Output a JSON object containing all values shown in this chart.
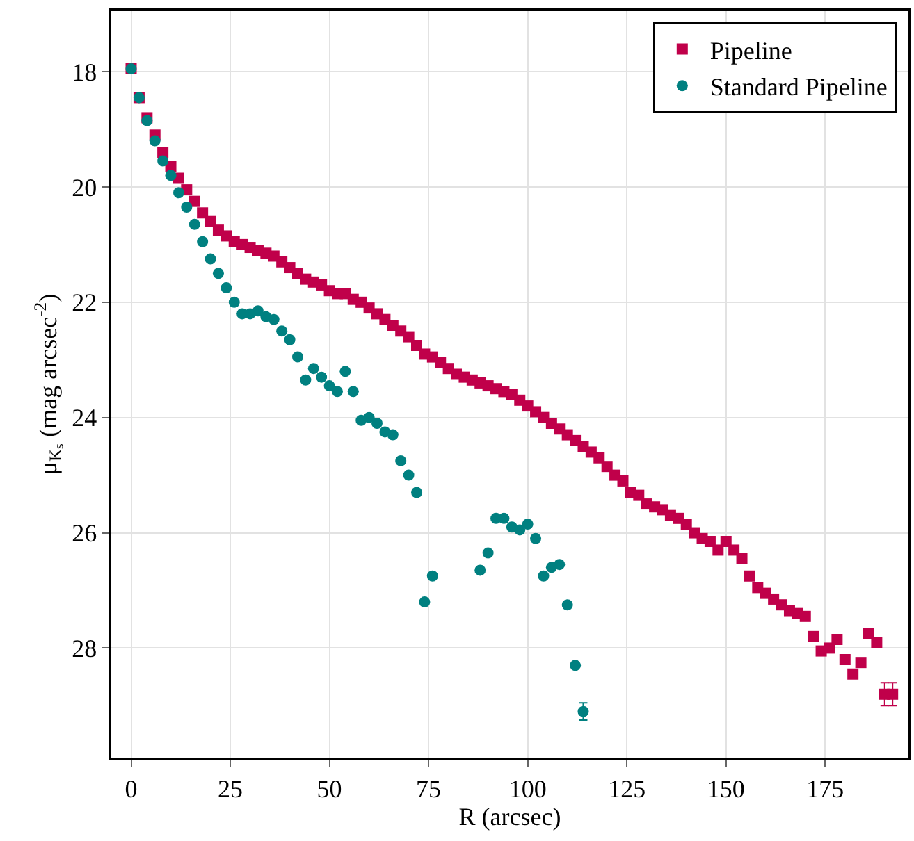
{
  "chart_data": {
    "type": "scatter",
    "xlabel": "R (arcsec)",
    "ylabel": "μ$_{Kₛ}$ (mag arcsec$^{-2}$)",
    "xlim": [
      -5,
      196
    ],
    "xticks": [
      0,
      25,
      50,
      75,
      100,
      125,
      150,
      175
    ],
    "ylim": [
      29.9,
      16.95
    ],
    "yticks": [
      18,
      20,
      22,
      24,
      26,
      28
    ],
    "grid": true,
    "legend": "top right",
    "series": [
      {
        "name": "Pipeline",
        "color": "#c0004a",
        "marker": "square",
        "x": [
          0,
          2,
          4,
          6,
          8,
          10,
          12,
          14,
          16,
          18,
          20,
          22,
          24,
          26,
          28,
          30,
          32,
          34,
          36,
          38,
          40,
          42,
          44,
          46,
          48,
          50,
          52,
          54,
          56,
          58,
          60,
          62,
          64,
          66,
          68,
          70,
          72,
          74,
          76,
          78,
          80,
          82,
          84,
          86,
          88,
          90,
          92,
          94,
          96,
          98,
          100,
          102,
          104,
          106,
          108,
          110,
          112,
          114,
          116,
          118,
          120,
          122,
          124,
          126,
          128,
          130,
          132,
          134,
          136,
          138,
          140,
          142,
          144,
          146,
          148,
          150,
          152,
          154,
          156,
          158,
          160,
          162,
          164,
          166,
          168,
          170,
          172,
          174,
          176,
          178,
          180,
          182,
          184,
          186,
          188,
          190,
          192
        ],
        "values": [
          17.95,
          18.45,
          18.8,
          19.1,
          19.4,
          19.65,
          19.85,
          20.05,
          20.25,
          20.45,
          20.6,
          20.75,
          20.85,
          20.95,
          21.0,
          21.05,
          21.1,
          21.15,
          21.2,
          21.3,
          21.4,
          21.5,
          21.6,
          21.65,
          21.7,
          21.8,
          21.85,
          21.85,
          21.95,
          22.0,
          22.1,
          22.2,
          22.3,
          22.4,
          22.5,
          22.6,
          22.75,
          22.9,
          22.95,
          23.05,
          23.15,
          23.25,
          23.3,
          23.35,
          23.4,
          23.45,
          23.5,
          23.55,
          23.6,
          23.7,
          23.8,
          23.9,
          24.0,
          24.1,
          24.2,
          24.3,
          24.4,
          24.5,
          24.6,
          24.7,
          24.85,
          25.0,
          25.1,
          25.3,
          25.35,
          25.5,
          25.55,
          25.6,
          25.7,
          25.75,
          25.85,
          26.0,
          26.1,
          26.15,
          26.3,
          26.15,
          26.3,
          26.45,
          26.75,
          26.95,
          27.05,
          27.15,
          27.25,
          27.35,
          27.4,
          27.45,
          27.8,
          28.05,
          28.0,
          27.85,
          28.2,
          28.45,
          28.25,
          27.75,
          27.9,
          28.8,
          28.8
        ],
        "errors": [
          null,
          null,
          null,
          null,
          null,
          null,
          null,
          null,
          null,
          null,
          null,
          null,
          null,
          null,
          null,
          null,
          null,
          null,
          null,
          null,
          null,
          null,
          null,
          null,
          null,
          null,
          null,
          null,
          null,
          null,
          null,
          null,
          null,
          null,
          null,
          null,
          null,
          null,
          null,
          null,
          null,
          null,
          null,
          null,
          null,
          null,
          null,
          null,
          null,
          null,
          null,
          null,
          null,
          null,
          null,
          null,
          null,
          null,
          null,
          null,
          null,
          null,
          null,
          null,
          null,
          null,
          null,
          null,
          null,
          null,
          null,
          null,
          null,
          null,
          null,
          null,
          null,
          null,
          null,
          null,
          null,
          null,
          null,
          null,
          null,
          null,
          null,
          null,
          null,
          null,
          null,
          null,
          null,
          null,
          null,
          0.2,
          0.2
        ]
      },
      {
        "name": "Standard Pipeline",
        "color": "#008080",
        "marker": "circle",
        "x": [
          0,
          2,
          4,
          6,
          8,
          10,
          12,
          14,
          16,
          18,
          20,
          22,
          24,
          26,
          28,
          30,
          32,
          34,
          36,
          38,
          40,
          42,
          44,
          46,
          48,
          50,
          52,
          54,
          56,
          58,
          60,
          62,
          64,
          66,
          68,
          70,
          72,
          74,
          76,
          88,
          90,
          92,
          94,
          96,
          98,
          100,
          102,
          104,
          106,
          108,
          110,
          112,
          114
        ],
        "values": [
          17.95,
          18.45,
          18.85,
          19.2,
          19.55,
          19.8,
          20.1,
          20.35,
          20.65,
          20.95,
          21.25,
          21.5,
          21.75,
          22.0,
          22.2,
          22.2,
          22.15,
          22.25,
          22.3,
          22.5,
          22.65,
          22.95,
          23.35,
          23.15,
          23.3,
          23.45,
          23.55,
          23.2,
          23.55,
          24.05,
          24.0,
          24.1,
          24.25,
          24.3,
          24.75,
          25.0,
          25.3,
          27.2,
          26.75,
          26.65,
          26.35,
          25.75,
          25.75,
          25.9,
          25.95,
          25.85,
          26.1,
          26.75,
          26.6,
          26.55,
          27.25,
          28.3,
          29.1
        ],
        "errors": [
          null,
          null,
          null,
          null,
          null,
          null,
          null,
          null,
          null,
          null,
          null,
          null,
          null,
          null,
          null,
          null,
          null,
          null,
          null,
          null,
          null,
          null,
          null,
          null,
          null,
          null,
          null,
          null,
          null,
          null,
          null,
          null,
          null,
          null,
          null,
          null,
          null,
          null,
          null,
          null,
          null,
          null,
          null,
          null,
          null,
          null,
          null,
          null,
          null,
          null,
          null,
          null,
          0.15
        ]
      }
    ]
  }
}
